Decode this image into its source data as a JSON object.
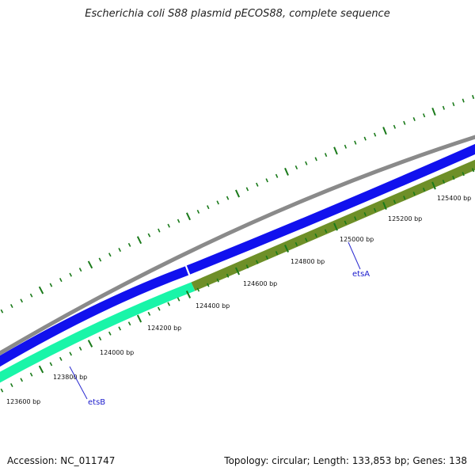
{
  "title": "Escherichia coli S88 plasmid pECOS88, complete sequence",
  "footer": {
    "accession": "Accession: NC_011747",
    "summary": "Topology: circular; Length: 133,853 bp; Genes: 138"
  },
  "tick_labels": [
    "123600 bp",
    "123800 bp",
    "124000 bp",
    "124200 bp",
    "124400 bp",
    "124600 bp",
    "124800 bp",
    "125000 bp",
    "125200 bp",
    "125400 bp"
  ],
  "genes": [
    {
      "name": "etsB",
      "color": "#19f5a8",
      "color_dark": "#10b47a"
    },
    {
      "name": "etsA",
      "color": "#6e8f28",
      "color_dark": "#4e6b18"
    }
  ],
  "tracks": {
    "backbone_color": "#8a8a8a",
    "forward_color": "#1111ee",
    "tick_color": "#1a7a1a"
  }
}
